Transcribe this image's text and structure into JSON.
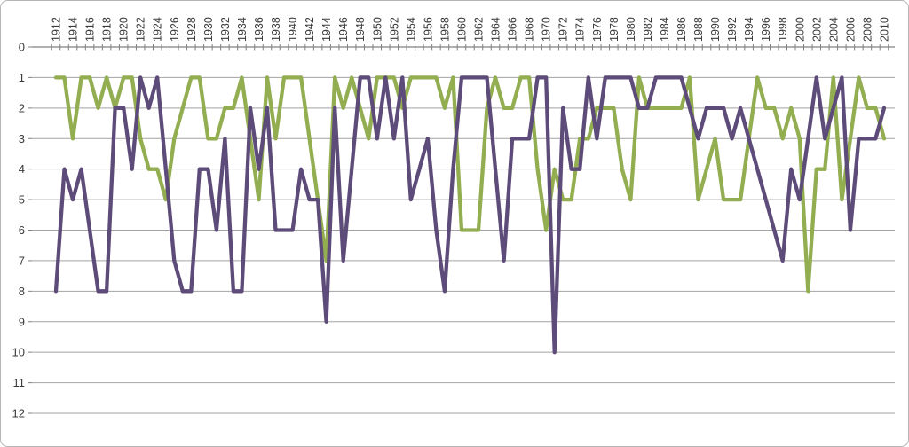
{
  "chart_data": {
    "type": "line",
    "title": "",
    "xlabel": "",
    "ylabel": "",
    "y_axis_inverted": true,
    "ylim": [
      0,
      12
    ],
    "y_ticks": [
      0,
      1,
      2,
      3,
      4,
      5,
      6,
      7,
      8,
      9,
      10,
      11,
      12
    ],
    "x_tick_label_step": 2,
    "x_label_orientation": "vertical",
    "grid": true,
    "legend": "none",
    "years": [
      1912,
      1913,
      1914,
      1915,
      1916,
      1917,
      1918,
      1919,
      1920,
      1921,
      1922,
      1923,
      1924,
      1925,
      1926,
      1927,
      1928,
      1929,
      1930,
      1931,
      1932,
      1933,
      1934,
      1935,
      1936,
      1937,
      1938,
      1939,
      1940,
      1941,
      1942,
      1943,
      1944,
      1945,
      1946,
      1947,
      1948,
      1949,
      1950,
      1951,
      1952,
      1953,
      1954,
      1955,
      1956,
      1957,
      1958,
      1959,
      1960,
      1961,
      1962,
      1963,
      1964,
      1965,
      1966,
      1967,
      1968,
      1969,
      1970,
      1971,
      1972,
      1973,
      1974,
      1975,
      1976,
      1977,
      1978,
      1979,
      1980,
      1981,
      1982,
      1983,
      1984,
      1985,
      1986,
      1987,
      1988,
      1989,
      1990,
      1991,
      1992,
      1993,
      1994,
      1995,
      1996,
      1997,
      1998,
      1999,
      2000,
      2001,
      2002,
      2003,
      2004,
      2005,
      2006,
      2007,
      2008,
      2009,
      2010
    ],
    "series": [
      {
        "name": "series-green",
        "color": "#93AD51",
        "values": [
          1,
          1,
          3,
          1,
          1,
          2,
          1,
          2,
          1,
          1,
          3,
          4,
          4,
          5,
          3,
          2,
          1,
          1,
          3,
          3,
          2,
          2,
          1,
          3,
          5,
          1,
          3,
          1,
          1,
          1,
          3,
          5,
          7,
          1,
          2,
          1,
          2,
          3,
          1,
          1,
          1,
          2,
          1,
          1,
          1,
          1,
          2,
          1,
          6,
          6,
          6,
          2,
          1,
          2,
          2,
          1,
          1,
          4,
          6,
          4,
          5,
          5,
          3,
          3,
          2,
          2,
          2,
          4,
          5,
          1,
          2,
          2,
          2,
          2,
          2,
          1,
          5,
          4,
          3,
          5,
          5,
          5,
          3,
          1,
          2,
          2,
          3,
          2,
          3,
          8,
          4,
          4,
          1,
          5,
          3,
          1,
          2,
          2,
          3
        ]
      },
      {
        "name": "series-purple",
        "color": "#5D4B79",
        "values": [
          8,
          4,
          5,
          4,
          6,
          8,
          8,
          2,
          2,
          4,
          1,
          2,
          1,
          4,
          7,
          8,
          8,
          4,
          4,
          6,
          3,
          8,
          8,
          2,
          4,
          2,
          6,
          6,
          6,
          4,
          5,
          5,
          9,
          2,
          7,
          4,
          1,
          1,
          3,
          1,
          3,
          1,
          5,
          4,
          3,
          6,
          8,
          4,
          1,
          1,
          1,
          1,
          4,
          7,
          3,
          3,
          3,
          1,
          1,
          10,
          2,
          4,
          4,
          1,
          3,
          1,
          1,
          1,
          1,
          2,
          2,
          1,
          1,
          1,
          1,
          2,
          3,
          2,
          2,
          2,
          3,
          2,
          3,
          4,
          5,
          6,
          7,
          4,
          5,
          3,
          1,
          3,
          2,
          1,
          6,
          3,
          3,
          3,
          2
        ]
      }
    ]
  },
  "colors": {
    "background": "#ffffff",
    "frame_border": "#b5b5b5",
    "gridline": "#a3a3a3",
    "axis_line": "#808080",
    "tick": "#808080",
    "label_text": "#3b3b3b"
  },
  "layout_values": {
    "y_tick_labels": [
      "0",
      "1",
      "2",
      "3",
      "4",
      "5",
      "6",
      "7",
      "8",
      "9",
      "10",
      "11",
      "12"
    ]
  }
}
